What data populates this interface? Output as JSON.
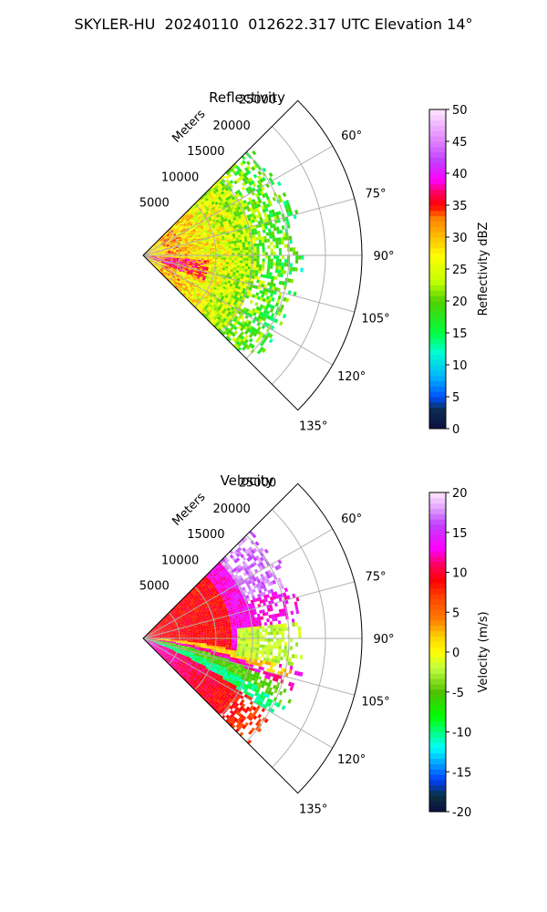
{
  "title": "SKYLER-HU  20240110  012622.317 UTC Elevation 14°",
  "chart_data": [
    {
      "type": "heatmap",
      "projection": "polar-sector",
      "title": "Reflectivity",
      "radial_label": "Meters",
      "radial_ticks": [
        "5000",
        "10000",
        "15000",
        "20000",
        "25000"
      ],
      "angle_ticks": [
        "60°",
        "75°",
        "90°",
        "105°",
        "120°",
        "135°"
      ],
      "sector_deg": [
        45,
        135
      ],
      "rmax": 30000,
      "colorbar": {
        "label": "Reflectivity dBZ",
        "ticks": [
          "0",
          "5",
          "10",
          "15",
          "20",
          "25",
          "30",
          "35",
          "40",
          "45",
          "50"
        ],
        "range": [
          0,
          50
        ]
      }
    },
    {
      "type": "heatmap",
      "projection": "polar-sector",
      "title": "Velocity",
      "radial_label": "Meters",
      "radial_ticks": [
        "5000",
        "10000",
        "15000",
        "20000",
        "25000"
      ],
      "angle_ticks": [
        "60°",
        "75°",
        "90°",
        "105°",
        "120°",
        "135°"
      ],
      "sector_deg": [
        45,
        135
      ],
      "rmax": 30000,
      "colorbar": {
        "label": "Velocity (m/s)",
        "ticks": [
          "-20",
          "-15",
          "-10",
          "-5",
          "0",
          "5",
          "10",
          "15",
          "20"
        ],
        "range": [
          -20,
          20
        ]
      }
    }
  ]
}
